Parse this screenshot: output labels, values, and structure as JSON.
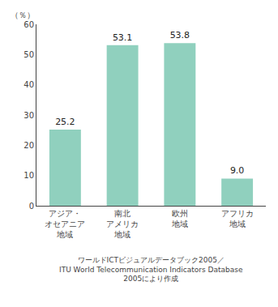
{
  "chart_data": {
    "type": "bar",
    "categories": [
      "アジア・\nオセアニア\n地域",
      "南北\nアメリカ\n地域",
      "欧州\n地域",
      "アフリカ\n地域"
    ],
    "values": [
      25.2,
      53.1,
      53.8,
      9.0
    ],
    "value_labels": [
      "25.2",
      "53.1",
      "53.8",
      "9.0"
    ],
    "data_labels": true,
    "color": "#90d0be",
    "ylabel": "（％）",
    "ylim": [
      0,
      60
    ],
    "yticks": [
      0,
      10,
      20,
      30,
      40,
      50,
      60
    ],
    "grid": false,
    "annotations": [
      "ワールドICTビジュアルデータブック2005／\nITU World Telecommunication Indicators Database\n2005により作成"
    ]
  }
}
